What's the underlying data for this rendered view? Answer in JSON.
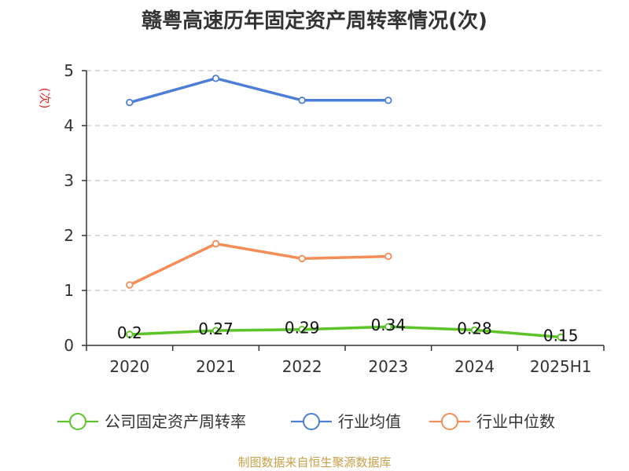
{
  "title": "赣粤高速历年固定资产周转率情况(次)",
  "source": "制图数据来自恒生聚源数据库",
  "chart_data": {
    "type": "line",
    "title": "赣粤高速历年固定资产周转率情况(次)",
    "xlabel": "",
    "ylabel": "(次)",
    "categories": [
      "2020",
      "2021",
      "2022",
      "2023",
      "2024",
      "2025H1"
    ],
    "yticks": [
      "0",
      "1",
      "2",
      "3",
      "4",
      "5"
    ],
    "ylim": [
      0,
      5
    ],
    "grid": true,
    "legend_position": "bottom",
    "series": [
      {
        "name": "公司固定资产周转率",
        "color": "#5cc429",
        "values": [
          0.2,
          0.27,
          0.29,
          0.34,
          0.28,
          0.15
        ],
        "labels": [
          "0.2",
          "0.27",
          "0.29",
          "0.34",
          "0.28",
          "0.15"
        ]
      },
      {
        "name": "行业均值",
        "color": "#4d7fd9",
        "values": [
          4.42,
          4.86,
          4.46,
          4.46,
          null,
          null
        ]
      },
      {
        "name": "行业中位数",
        "color": "#f58d58",
        "values": [
          1.1,
          1.85,
          1.58,
          1.62,
          null,
          null
        ]
      }
    ]
  }
}
